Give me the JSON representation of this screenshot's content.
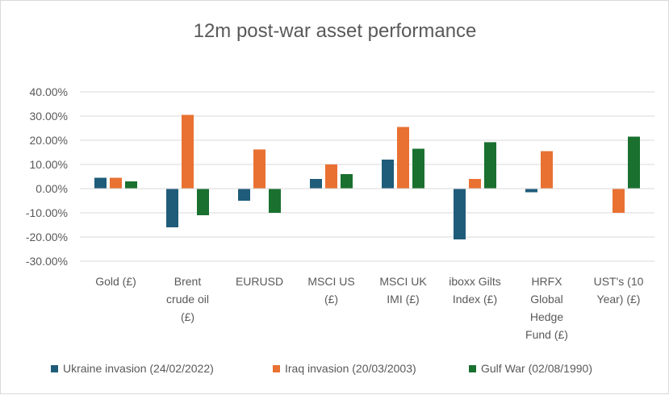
{
  "chart_data": {
    "type": "bar",
    "title": "12m post-war asset performance",
    "xlabel": "",
    "ylabel": "",
    "ylim": [
      -30,
      40
    ],
    "ytick_step": 10,
    "ytick_labels": [
      "-30.00%",
      "-20.00%",
      "-10.00%",
      "0.00%",
      "10.00%",
      "20.00%",
      "30.00%",
      "40.00%"
    ],
    "grid": true,
    "legend_position": "bottom",
    "categories": [
      [
        "Gold (£)"
      ],
      [
        "Brent",
        "crude oil",
        "(£)"
      ],
      [
        "EURUSD"
      ],
      [
        "MSCI US",
        "(£)"
      ],
      [
        "MSCI UK",
        "IMI (£)"
      ],
      [
        "iboxx Gilts",
        "Index (£)"
      ],
      [
        "HRFX",
        "Global",
        "Hedge",
        "Fund (£)"
      ],
      [
        "UST's (10",
        "Year) (£)"
      ]
    ],
    "series": [
      {
        "name": "Ukraine invasion (24/02/2022)",
        "color": "#1f5c7a",
        "values": [
          4.5,
          -16.0,
          -5.0,
          4.0,
          12.0,
          -21.0,
          -1.5,
          null
        ]
      },
      {
        "name": "Iraq invasion (20/03/2003)",
        "color": "#e97132",
        "values": [
          4.5,
          30.5,
          16.2,
          10.0,
          25.5,
          4.0,
          15.5,
          -10.0
        ]
      },
      {
        "name": "Gulf War (02/08/1990)",
        "color": "#19702f",
        "values": [
          3.0,
          -11.0,
          -10.0,
          6.0,
          16.5,
          19.2,
          null,
          21.5
        ]
      }
    ]
  }
}
